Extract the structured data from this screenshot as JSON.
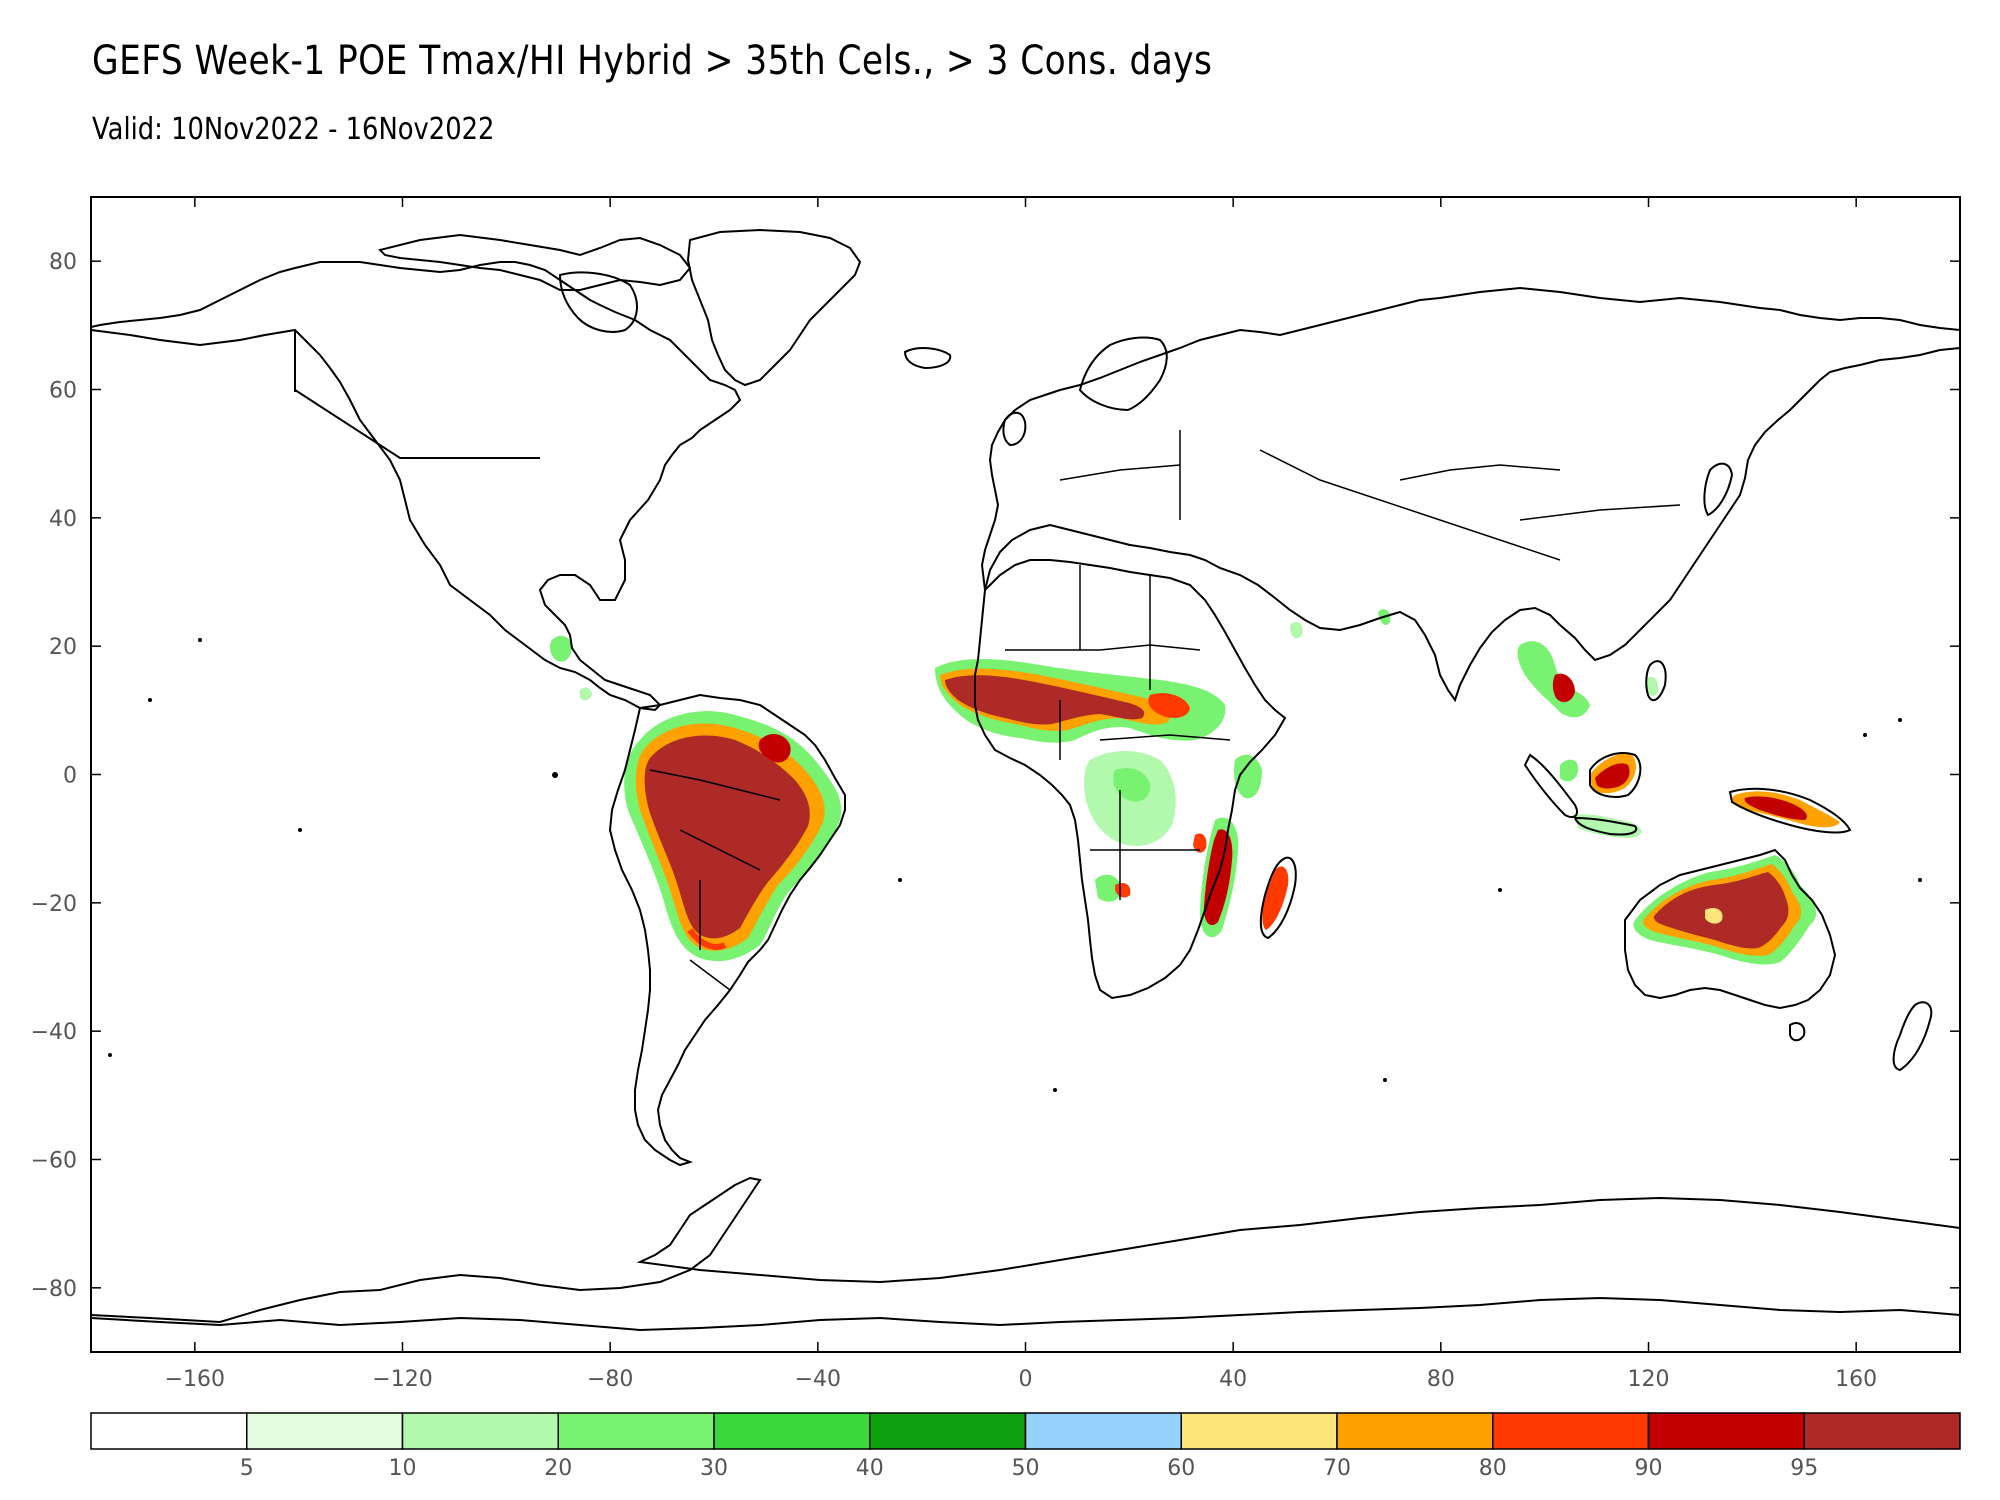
{
  "title": "GEFS Week-1 POE Tmax/HI Hybrid > 35th Cels., > 3 Cons. days",
  "subtitle": "Valid: 10Nov2022 - 16Nov2022",
  "map": {
    "lon_range": [
      -180,
      180
    ],
    "lat_range": [
      -90,
      90
    ],
    "lat_ticks": [
      80,
      60,
      40,
      20,
      0,
      -20,
      -40,
      -60,
      -80
    ],
    "lat_tick_labels": [
      "80",
      "60",
      "40",
      "20",
      "0",
      "−20",
      "−40",
      "−60",
      "−80"
    ],
    "lon_ticks": [
      -160,
      -120,
      -80,
      -40,
      0,
      40,
      80,
      120,
      160
    ],
    "lon_tick_labels": [
      "−160",
      "−120",
      "−80",
      "−40",
      "0",
      "40",
      "80",
      "120",
      "160"
    ]
  },
  "colorbar": {
    "colors": [
      "#ffffff",
      "#e2fde0",
      "#b2f8ad",
      "#78f270",
      "#38d83a",
      "#0fa10f",
      "#94d2fb",
      "#fde57c",
      "#fda200",
      "#fe3a00",
      "#c30000",
      "#ae2a27"
    ],
    "labels": [
      "5",
      "10",
      "20",
      "30",
      "40",
      "50",
      "60",
      "70",
      "80",
      "90",
      "95"
    ]
  },
  "shaded_regions": [
    {
      "name": "amazon",
      "level": "95",
      "color": "#ae2a27"
    },
    {
      "name": "sahel",
      "level": "95",
      "color": "#ae2a27"
    },
    {
      "name": "mozambique",
      "level": "90",
      "color": "#c30000"
    },
    {
      "name": "northern-australia",
      "level": "95",
      "color": "#ae2a27"
    },
    {
      "name": "southeast-asia",
      "level": "90",
      "color": "#c30000"
    },
    {
      "name": "new-guinea",
      "level": "90",
      "color": "#c30000"
    },
    {
      "name": "madagascar",
      "level": "80",
      "color": "#fe3a00"
    }
  ]
}
